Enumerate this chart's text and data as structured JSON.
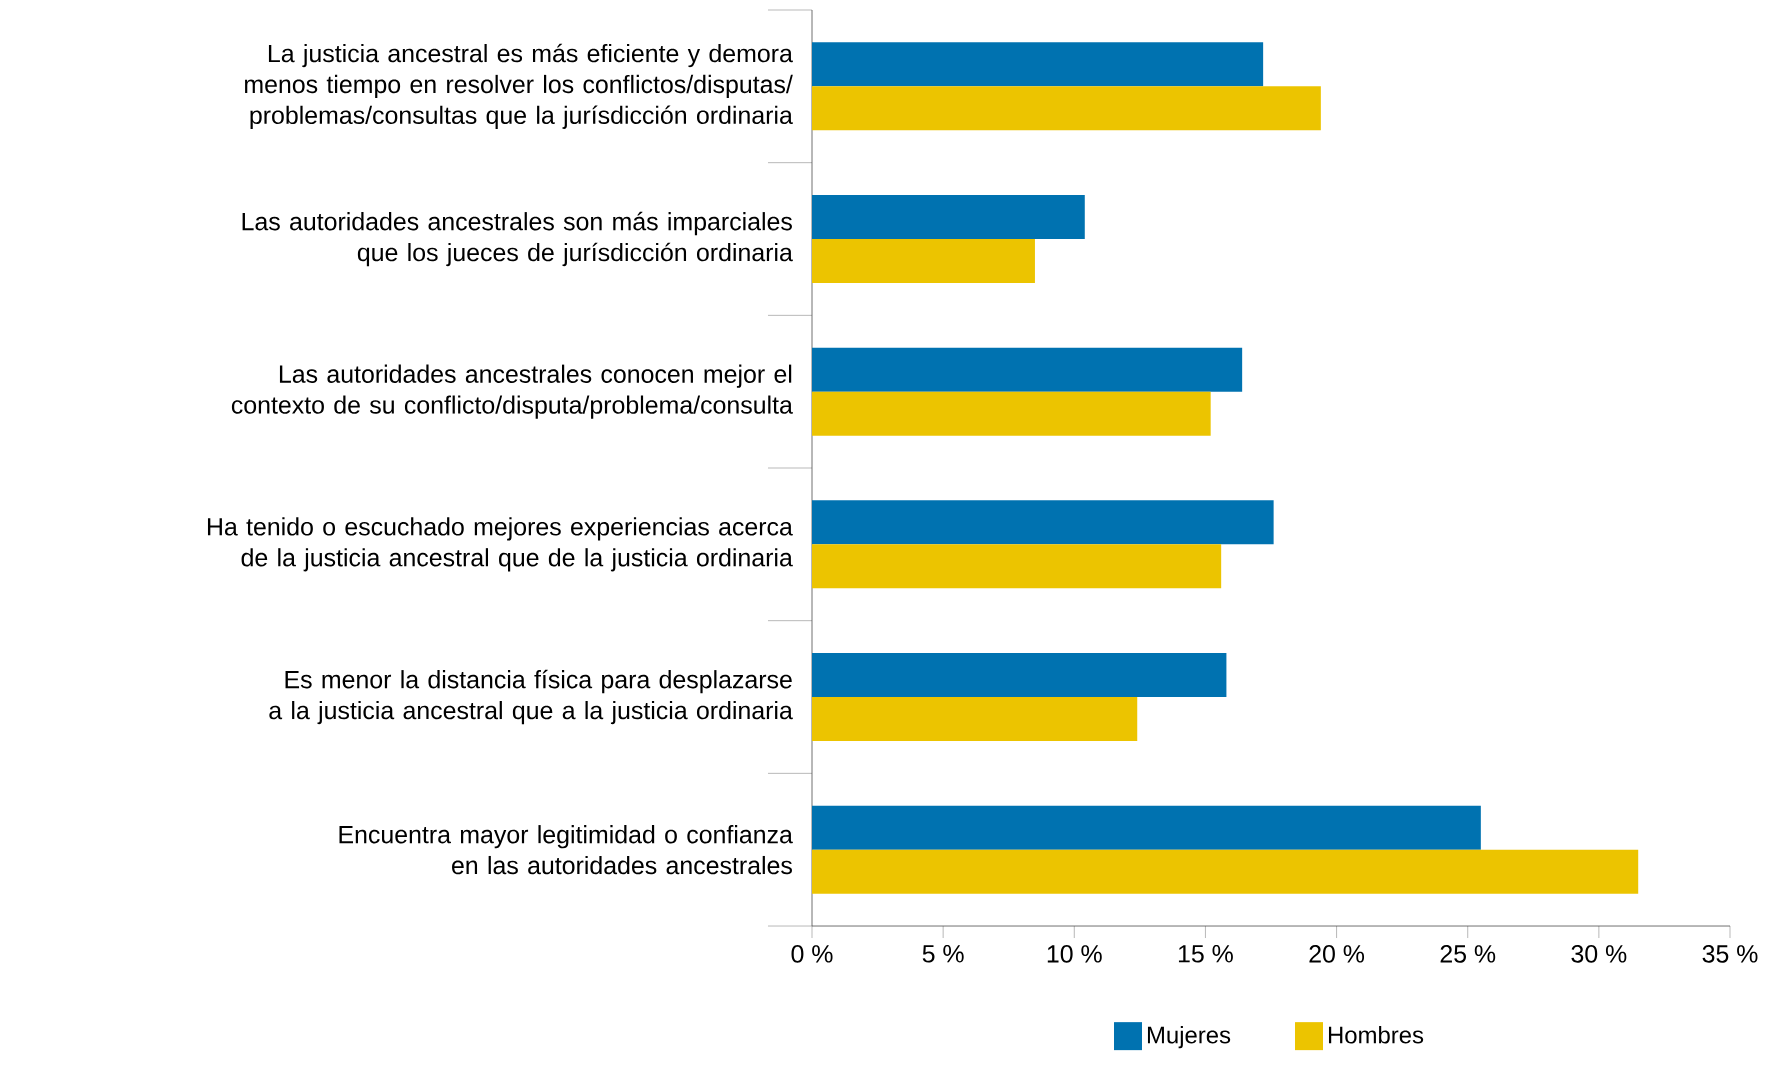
{
  "chart_data": {
    "type": "bar",
    "orientation": "horizontal",
    "categories": [
      "La justicia ancestral es más eficiente y demora menos tiempo en resolver los conflictos/disputas/ problemas/consultas que la jurísdicción ordinaria",
      "Las autoridades ancestrales son más imparciales que los jueces de jurísdicción ordinaria",
      "Las autoridades ancestrales conocen mejor el contexto de su conflicto/disputa/problema/consulta",
      "Ha tenido o escuchado mejores experiencias acerca de la justicia ancestral que de la justicia ordinaria",
      "Es menor la distancia física para desplazarse a la justicia ancestral que a la justicia ordinaria",
      "Encuentra mayor legitimidad o confianza en las autoridades ancestrales"
    ],
    "series": [
      {
        "name": "Mujeres",
        "color": "#0072b0",
        "values": [
          17.2,
          10.4,
          16.4,
          17.6,
          15.8,
          25.5
        ]
      },
      {
        "name": "Hombres",
        "color": "#ecc400",
        "values": [
          19.4,
          8.5,
          15.2,
          15.6,
          12.4,
          31.5
        ]
      }
    ],
    "xlim": [
      0,
      35
    ],
    "xticks": [
      {
        "value": 0,
        "label": "0 %"
      },
      {
        "value": 5,
        "label": "5 %"
      },
      {
        "value": 10,
        "label": "10 %"
      },
      {
        "value": 15,
        "label": "15 %"
      },
      {
        "value": 20,
        "label": "20 %"
      },
      {
        "value": 25,
        "label": "25 %"
      },
      {
        "value": 30,
        "label": "30 %"
      },
      {
        "value": 35,
        "label": "35 %"
      }
    ],
    "legend": "bottom",
    "grid": false
  }
}
